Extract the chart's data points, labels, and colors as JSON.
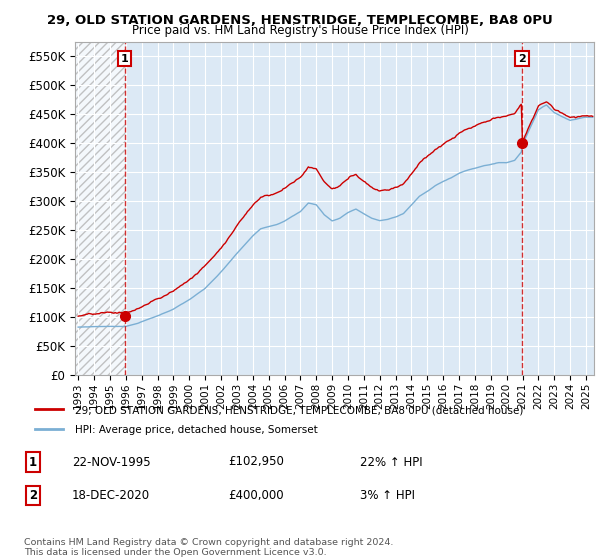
{
  "title_line1": "29, OLD STATION GARDENS, HENSTRIDGE, TEMPLECOMBE, BA8 0PU",
  "title_line2": "Price paid vs. HM Land Registry's House Price Index (HPI)",
  "ylim": [
    0,
    575000
  ],
  "yticks": [
    0,
    50000,
    100000,
    150000,
    200000,
    250000,
    300000,
    350000,
    400000,
    450000,
    500000,
    550000
  ],
  "background_color": "#ffffff",
  "plot_bg_color": "#dce9f5",
  "grid_color": "#ffffff",
  "sale1_x": 1995.92,
  "sale1_y": 102950,
  "sale2_x": 2020.96,
  "sale2_y": 400000,
  "line_color_property": "#cc0000",
  "line_color_hpi": "#7bafd4",
  "legend_property": "29, OLD STATION GARDENS, HENSTRIDGE, TEMPLECOMBE, BA8 0PU (detached house)",
  "legend_hpi": "HPI: Average price, detached house, Somerset",
  "table_rows": [
    {
      "num": "1",
      "date": "22-NOV-1995",
      "price": "£102,950",
      "hpi": "22% ↑ HPI"
    },
    {
      "num": "2",
      "date": "18-DEC-2020",
      "price": "£400,000",
      "hpi": "3% ↑ HPI"
    }
  ],
  "footnote": "Contains HM Land Registry data © Crown copyright and database right 2024.\nThis data is licensed under the Open Government Licence v3.0.",
  "xmin": 1992.8,
  "xmax": 2025.5
}
